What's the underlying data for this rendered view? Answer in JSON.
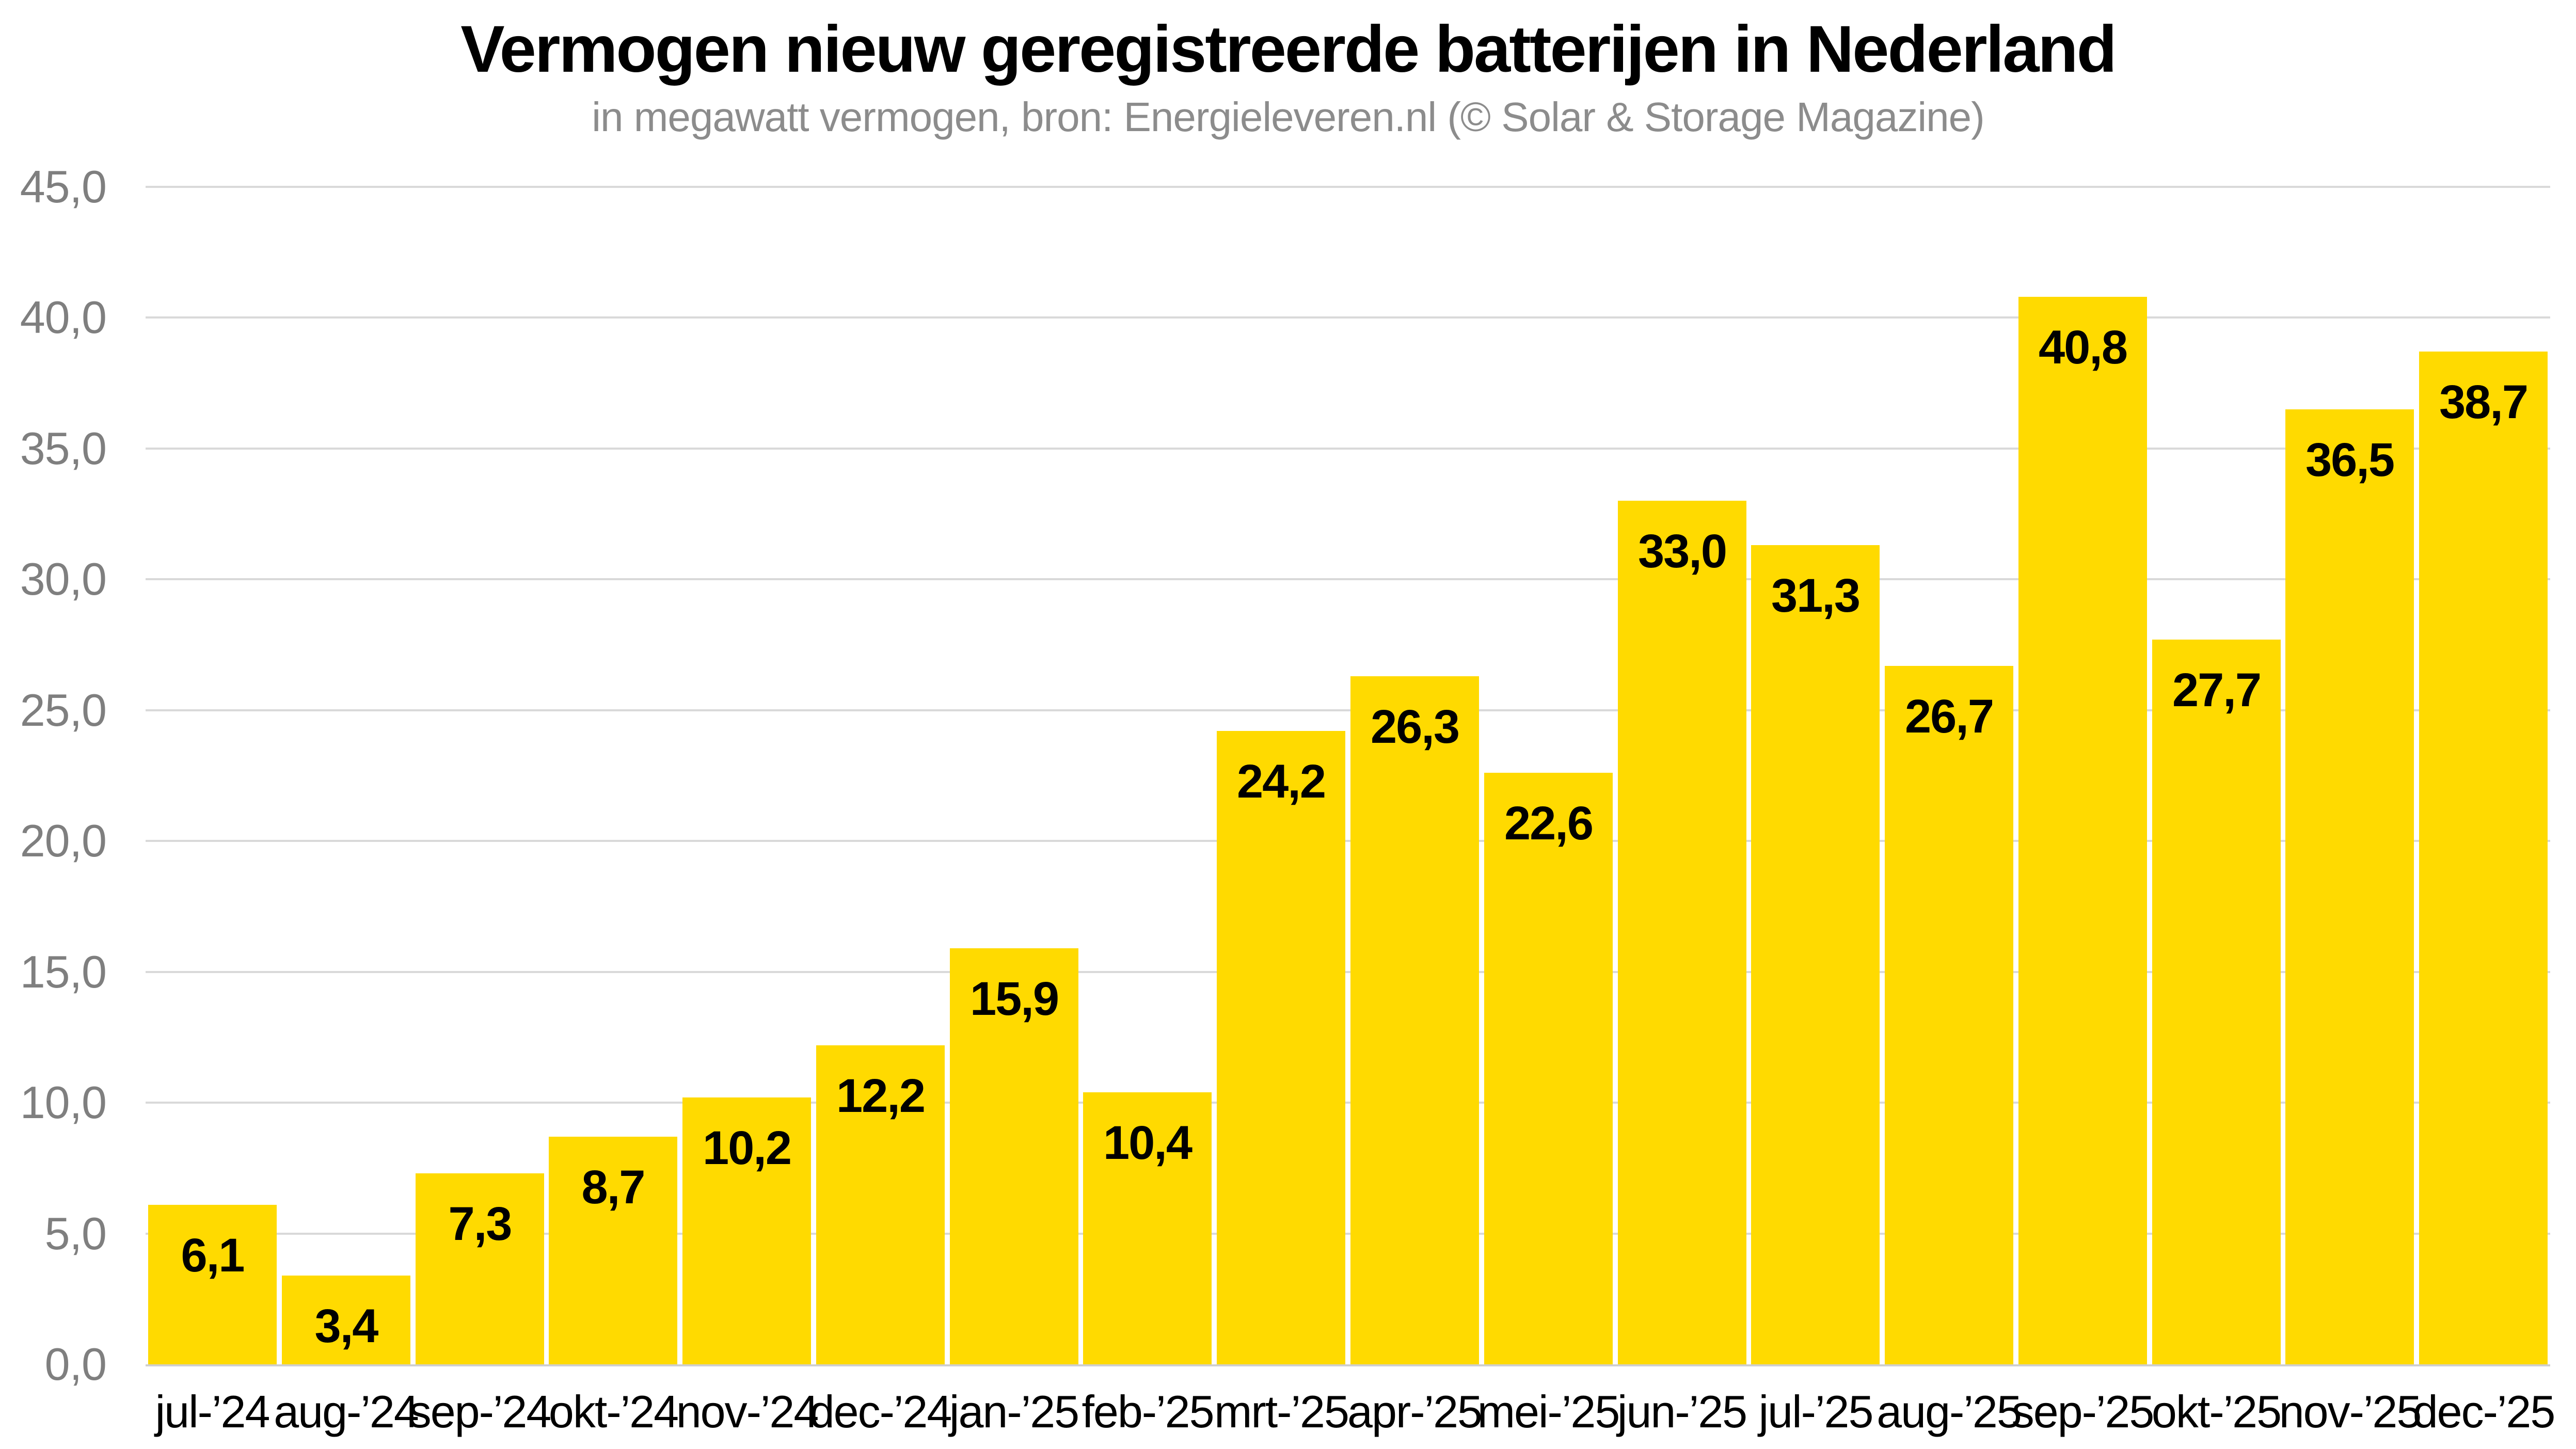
{
  "chart_data": {
    "type": "bar",
    "title": "Vermogen nieuw geregistreerde batterijen in Nederland",
    "subtitle": "in megawatt vermogen, bron: Energieleveren.nl (© Solar & Storage Magazine)",
    "unit": "megawatt",
    "categories": [
      "jul-’24",
      "aug-’24",
      "sep-’24",
      "okt-’24",
      "nov-’24",
      "dec-’24",
      "jan-’25",
      "feb-’25",
      "mrt-’25",
      "apr-’25",
      "mei-’25",
      "jun-’25",
      "jul-’25",
      "aug-’25",
      "sep-’25",
      "okt-’25",
      "nov-’25",
      "dec-’25"
    ],
    "values": [
      6.1,
      3.4,
      7.3,
      8.7,
      10.2,
      12.2,
      15.9,
      10.4,
      24.2,
      26.3,
      22.6,
      33.0,
      31.3,
      26.7,
      40.8,
      27.7,
      36.5,
      38.7
    ],
    "value_labels": [
      "6,1",
      "3,4",
      "7,3",
      "8,7",
      "10,2",
      "12,2",
      "15,9",
      "10,4",
      "24,2",
      "26,3",
      "22,6",
      "33,0",
      "31,3",
      "26,7",
      "40,8",
      "27,7",
      "36,5",
      "38,7"
    ],
    "xlabel": "",
    "ylabel": "",
    "ylim": [
      0,
      45
    ],
    "ytick_step": 5,
    "ytick_labels": [
      "0,0",
      "5,0",
      "10,0",
      "15,0",
      "20,0",
      "25,0",
      "30,0",
      "35,0",
      "40,0",
      "45,0"
    ],
    "grid": "horizontal",
    "legend": "none",
    "colors": {
      "bar": "#ffda00",
      "gridline": "#d9d9d9",
      "axis_line": "#cfcfcf",
      "ytick_text": "#7f7f7f",
      "xtick_text": "#000000",
      "value_text": "#000000",
      "title_text": "#000000",
      "subtitle_text": "#8c8c8c",
      "background": "#ffffff"
    }
  }
}
